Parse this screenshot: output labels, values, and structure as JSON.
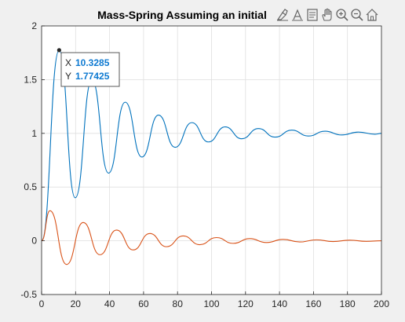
{
  "chart_data": {
    "type": "line",
    "title": "Mass-Spring Assuming an initial",
    "xlabel": "",
    "ylabel": "",
    "xlim": [
      0,
      200
    ],
    "ylim": [
      -0.5,
      2
    ],
    "xticks": [
      0,
      20,
      40,
      60,
      80,
      100,
      120,
      140,
      160,
      180,
      200
    ],
    "yticks": [
      -0.5,
      0,
      0.5,
      1,
      1.5,
      2
    ],
    "grid": true,
    "series": [
      {
        "color": "#0072bd",
        "x": [
          0,
          10.33,
          19.8,
          29.6,
          39.4,
          49.2,
          59.0,
          68.8,
          78.6,
          88.4,
          98.2,
          108.0,
          117.8,
          127.6,
          137.4,
          147.2,
          157.0,
          166.8,
          176.6,
          186.4,
          196.2,
          200
        ],
        "y": [
          0,
          1.774,
          0.4,
          1.5,
          0.63,
          1.29,
          0.78,
          1.17,
          0.87,
          1.1,
          0.92,
          1.06,
          0.95,
          1.045,
          0.965,
          1.03,
          0.975,
          1.02,
          0.985,
          1.012,
          0.992,
          1.0
        ]
      },
      {
        "color": "#d95319",
        "x": [
          0,
          4.9,
          14.7,
          24.5,
          34.3,
          44.1,
          53.9,
          63.7,
          73.5,
          83.3,
          93.1,
          102.9,
          112.7,
          122.5,
          132.3,
          142.1,
          151.9,
          161.7,
          171.5,
          181.3,
          191.1,
          200
        ],
        "y": [
          0,
          0.28,
          -0.22,
          0.17,
          -0.13,
          0.1,
          -0.085,
          0.068,
          -0.055,
          0.045,
          -0.036,
          0.03,
          -0.024,
          0.02,
          -0.016,
          0.013,
          -0.011,
          0.009,
          -0.007,
          0.006,
          -0.005,
          0.0
        ]
      }
    ],
    "datatip": {
      "x_label": "X",
      "x_value": "10.3285",
      "y_label": "Y",
      "y_value": "1.77425"
    }
  },
  "toolbar": [
    {
      "name": "brush-icon"
    },
    {
      "name": "data-cursor-icon"
    },
    {
      "name": "edit-plot-icon"
    },
    {
      "name": "pan-hand-icon"
    },
    {
      "name": "zoom-in-icon"
    },
    {
      "name": "zoom-out-icon"
    },
    {
      "name": "home-icon"
    }
  ]
}
